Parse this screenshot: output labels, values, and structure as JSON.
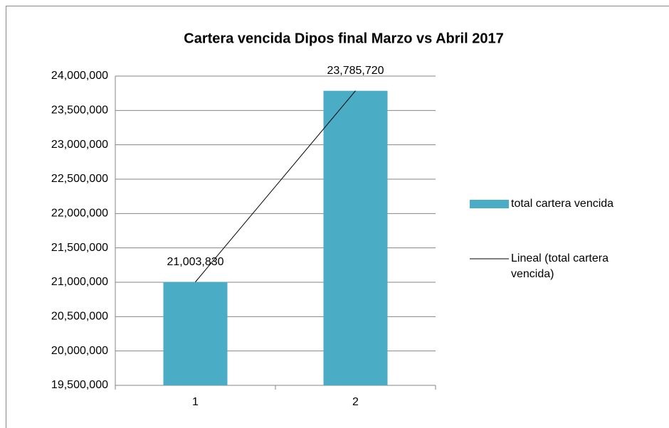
{
  "chart_data": {
    "type": "bar",
    "title": "Cartera vencida Dipos final Marzo vs Abril 2017",
    "categories": [
      "1",
      "2"
    ],
    "series": [
      {
        "name": "total cartera vencida",
        "color": "#4bacc6",
        "values": [
          21003830,
          23785720
        ],
        "value_labels": [
          "21,003,830",
          "23,785,720"
        ]
      }
    ],
    "trendline": {
      "name": "Lineal (total cartera vencida)",
      "color": "#000000"
    },
    "ylim": [
      19500000,
      24000000
    ],
    "yticks": [
      {
        "value": 19500000,
        "label": "19,500,000"
      },
      {
        "value": 20000000,
        "label": "20,000,000"
      },
      {
        "value": 20500000,
        "label": "20,500,000"
      },
      {
        "value": 21000000,
        "label": "21,000,000"
      },
      {
        "value": 21500000,
        "label": "21,500,000"
      },
      {
        "value": 22000000,
        "label": "22,000,000"
      },
      {
        "value": 22500000,
        "label": "22,500,000"
      },
      {
        "value": 23000000,
        "label": "23,000,000"
      },
      {
        "value": 23500000,
        "label": "23,500,000"
      },
      {
        "value": 24000000,
        "label": "24,000,000"
      }
    ],
    "grid": true,
    "legend": "right"
  }
}
